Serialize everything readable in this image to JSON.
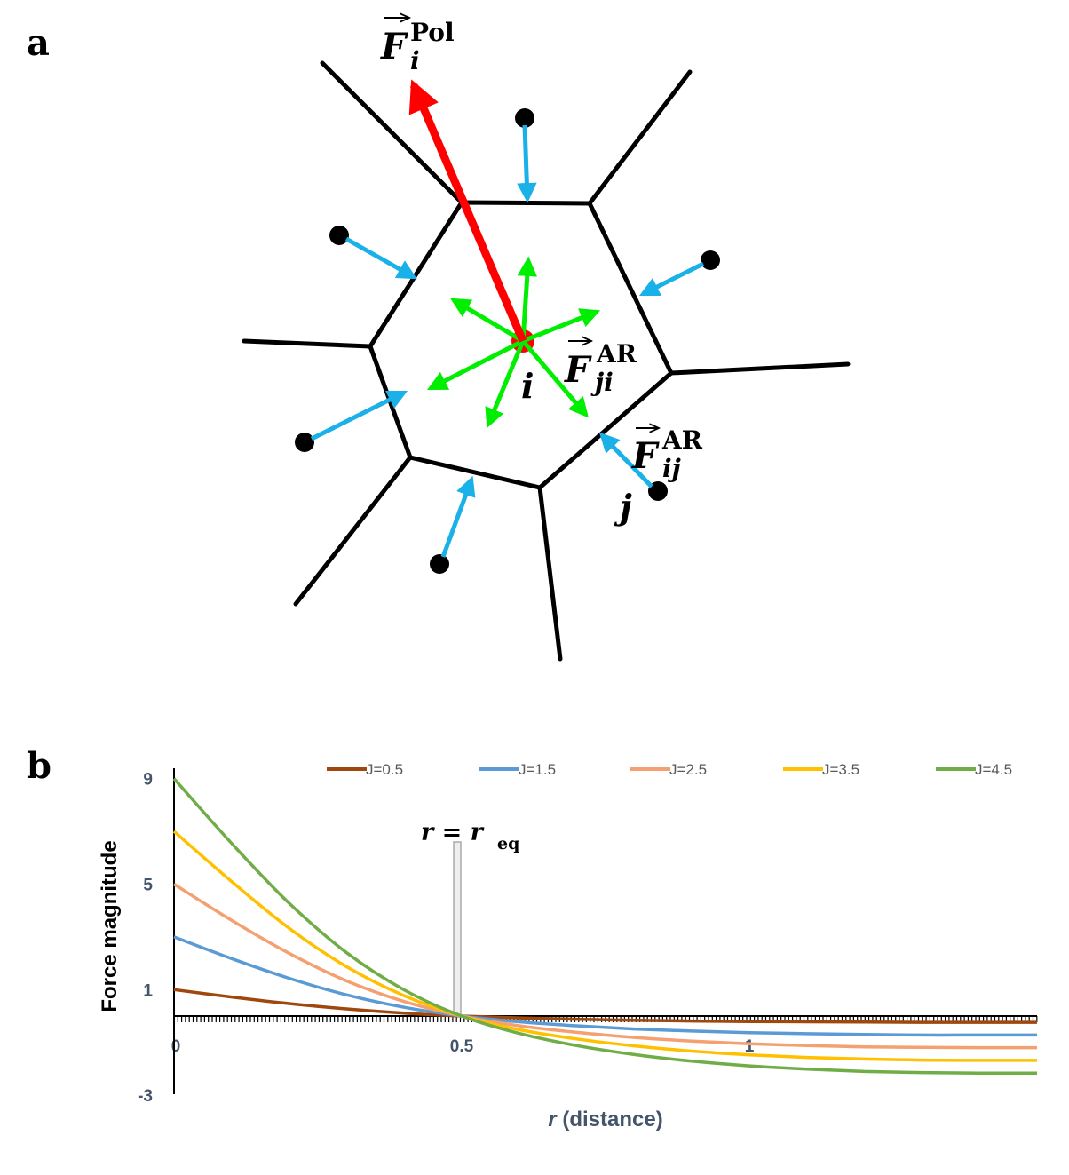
{
  "panel_a": {
    "letter": "a",
    "labels": {
      "F": "F",
      "pol_sub": "i",
      "pol_sup": "Pol",
      "ar_sup": "AR",
      "ji_sub": "ji",
      "ij_sub": "ij",
      "cell_i": "i",
      "cell_j": "j"
    },
    "colors": {
      "polarity": "#ff0000",
      "repulsion": "#00ee00",
      "neighbor_force": "#1ab0e8",
      "edges": "#000000"
    }
  },
  "panel_b": {
    "letter": "b",
    "annotation": {
      "lhs": "r = r",
      "sub": "eq"
    }
  },
  "chart_data": {
    "type": "line",
    "xlabel_italic": "r",
    "xlabel_rest": " (distance)",
    "ylabel": "Force magnitude",
    "xlim": [
      0,
      1.5
    ],
    "ylim": [
      -3,
      9.5
    ],
    "xticks": [
      {
        "value": 0,
        "label": "0"
      },
      {
        "value": 0.5,
        "label": "0.5"
      },
      {
        "value": 1,
        "label": "1"
      }
    ],
    "yticks": [
      {
        "value": 9,
        "label": "9"
      },
      {
        "value": 5,
        "label": "5"
      },
      {
        "value": 1,
        "label": "1"
      },
      {
        "value": -3,
        "label": "-3"
      }
    ],
    "legend_position": "top",
    "x": [
      0,
      0.1,
      0.2,
      0.3,
      0.4,
      0.5,
      0.6,
      0.7,
      0.8,
      0.9,
      1.0,
      1.1,
      1.2,
      1.3,
      1.4,
      1.5
    ],
    "series": [
      {
        "name": "J=0.5",
        "color": "#9e480e",
        "values": [
          1.0,
          0.72,
          0.47,
          0.27,
          0.11,
          0.0,
          -0.07,
          -0.12,
          -0.16,
          -0.19,
          -0.21,
          -0.22,
          -0.23,
          -0.24,
          -0.24,
          -0.24
        ]
      },
      {
        "name": "J=1.5",
        "color": "#5b9bd5",
        "values": [
          3.0,
          2.18,
          1.43,
          0.8,
          0.33,
          0.0,
          -0.22,
          -0.37,
          -0.49,
          -0.57,
          -0.63,
          -0.67,
          -0.7,
          -0.72,
          -0.72,
          -0.72
        ]
      },
      {
        "name": "J=2.5",
        "color": "#f4a070",
        "values": [
          5.0,
          3.63,
          2.38,
          1.33,
          0.55,
          0.0,
          -0.37,
          -0.62,
          -0.81,
          -0.95,
          -1.05,
          -1.12,
          -1.17,
          -1.19,
          -1.2,
          -1.2
        ]
      },
      {
        "name": "J=3.5",
        "color": "#ffc000",
        "values": [
          7.0,
          5.1,
          3.33,
          1.87,
          0.77,
          0.0,
          -0.52,
          -0.87,
          -1.13,
          -1.33,
          -1.47,
          -1.57,
          -1.63,
          -1.67,
          -1.68,
          -1.68
        ]
      },
      {
        "name": "J=4.5",
        "color": "#70ad47",
        "values": [
          9.0,
          6.55,
          4.28,
          2.4,
          0.99,
          0.0,
          -0.66,
          -1.12,
          -1.46,
          -1.71,
          -1.89,
          -2.01,
          -2.1,
          -2.14,
          -2.16,
          -2.16
        ]
      }
    ]
  }
}
